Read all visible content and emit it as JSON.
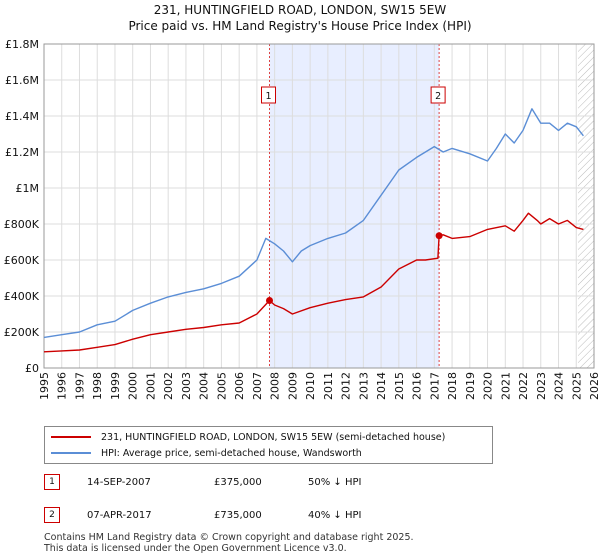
{
  "chart_data": {
    "type": "line",
    "title": "231, HUNTINGFIELD ROAD, LONDON, SW15 5EW",
    "subtitle": "Price paid vs. HM Land Registry's House Price Index (HPI)",
    "xlim": [
      1995,
      2026
    ],
    "ylim": [
      0,
      1800000
    ],
    "x_ticks": [
      "1995",
      "1996",
      "1997",
      "1998",
      "1999",
      "2000",
      "2001",
      "2002",
      "2003",
      "2004",
      "2005",
      "2006",
      "2007",
      "2008",
      "2009",
      "2010",
      "2011",
      "2012",
      "2013",
      "2014",
      "2015",
      "2016",
      "2017",
      "2018",
      "2019",
      "2020",
      "2021",
      "2022",
      "2023",
      "2024",
      "2025",
      "2026"
    ],
    "y_ticks": [
      {
        "value": 0,
        "label": "£0"
      },
      {
        "value": 200000,
        "label": "£200K"
      },
      {
        "value": 400000,
        "label": "£400K"
      },
      {
        "value": 600000,
        "label": "£600K"
      },
      {
        "value": 800000,
        "label": "£800K"
      },
      {
        "value": 1000000,
        "label": "£1M"
      },
      {
        "value": 1200000,
        "label": "£1.2M"
      },
      {
        "value": 1400000,
        "label": "£1.4M"
      },
      {
        "value": 1600000,
        "label": "£1.6M"
      },
      {
        "value": 1800000,
        "label": "£1.8M"
      }
    ],
    "shaded_region": [
      2007.71,
      2017.27
    ],
    "future_hatch_from": 2025.1,
    "series": [
      {
        "name": "231, HUNTINGFIELD ROAD, LONDON, SW15 5EW (semi-detached house)",
        "color": "#cc0000",
        "x": [
          1995,
          1996,
          1997,
          1998,
          1999,
          2000,
          2001,
          2002,
          2003,
          2004,
          2005,
          2006,
          2007,
          2007.71,
          2008,
          2008.5,
          2009,
          2010,
          2011,
          2012,
          2013,
          2014,
          2015,
          2016,
          2016.5,
          2017.2,
          2017.27,
          2017.5,
          2018,
          2019,
          2020,
          2021,
          2021.5,
          2022,
          2022.3,
          2022.8,
          2023,
          2023.5,
          2024,
          2024.5,
          2025,
          2025.4
        ],
        "y": [
          90000,
          95000,
          100000,
          115000,
          130000,
          160000,
          185000,
          200000,
          215000,
          225000,
          240000,
          250000,
          300000,
          375000,
          350000,
          330000,
          300000,
          335000,
          360000,
          380000,
          395000,
          450000,
          550000,
          600000,
          600000,
          610000,
          735000,
          740000,
          720000,
          730000,
          770000,
          790000,
          760000,
          820000,
          860000,
          820000,
          800000,
          830000,
          800000,
          820000,
          780000,
          770000
        ]
      },
      {
        "name": "HPI: Average price, semi-detached house, Wandsworth",
        "color": "#5b8ed6",
        "x": [
          1995,
          1996,
          1997,
          1998,
          1999,
          2000,
          2001,
          2002,
          2003,
          2004,
          2005,
          2006,
          2007,
          2007.5,
          2008,
          2008.5,
          2009,
          2009.5,
          2010,
          2011,
          2012,
          2013,
          2014,
          2015,
          2016,
          2017,
          2017.5,
          2018,
          2019,
          2020,
          2020.5,
          2021,
          2021.5,
          2022,
          2022.5,
          2023,
          2023.5,
          2024,
          2024.5,
          2025,
          2025.4
        ],
        "y": [
          170000,
          185000,
          200000,
          240000,
          260000,
          320000,
          360000,
          395000,
          420000,
          440000,
          470000,
          510000,
          600000,
          720000,
          690000,
          650000,
          590000,
          650000,
          680000,
          720000,
          750000,
          820000,
          960000,
          1100000,
          1170000,
          1230000,
          1200000,
          1220000,
          1190000,
          1150000,
          1220000,
          1300000,
          1250000,
          1320000,
          1440000,
          1360000,
          1360000,
          1320000,
          1360000,
          1340000,
          1290000
        ]
      }
    ],
    "markers": [
      {
        "label": "1",
        "x": 2007.71,
        "y": 375000
      },
      {
        "label": "2",
        "x": 2017.27,
        "y": 735000
      }
    ]
  },
  "legend": {
    "items": [
      {
        "label": "231, HUNTINGFIELD ROAD, LONDON, SW15 5EW (semi-detached house)",
        "color": "#cc0000"
      },
      {
        "label": "HPI: Average price, semi-detached house, Wandsworth",
        "color": "#5b8ed6"
      }
    ]
  },
  "transactions": [
    {
      "num": "1",
      "date": "14-SEP-2007",
      "price": "£375,000",
      "hpi": "50% ↓ HPI"
    },
    {
      "num": "2",
      "date": "07-APR-2017",
      "price": "£735,000",
      "hpi": "40% ↓ HPI"
    }
  ],
  "footer": {
    "line1": "Contains HM Land Registry data © Crown copyright and database right 2025.",
    "line2": "This data is licensed under the Open Government Licence v3.0."
  }
}
